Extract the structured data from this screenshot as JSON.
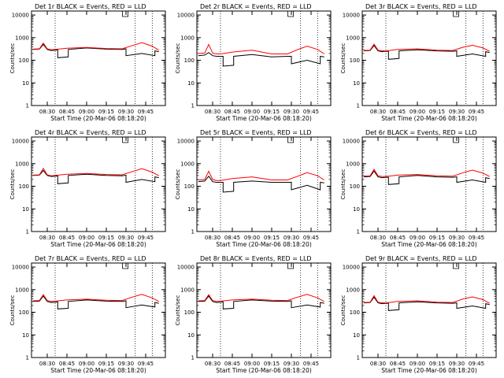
{
  "common": {
    "xlabel": "Start Time (20-Mar-06 08:18:20)",
    "ylabel": "Counts/sec",
    "x_tick_labels": [
      "08:30",
      "08:45",
      "09:00",
      "09:15",
      "09:30",
      "09:45"
    ],
    "y_tick_labels": [
      "1",
      "10",
      "100",
      "1000",
      "10000"
    ]
  },
  "chart_data": [
    {
      "type": "line",
      "title": "Det 1r BLACK = Events, RED = LLD",
      "xlabel": "Start Time (20-Mar-06 08:18:20)",
      "ylabel": "Counts/sec",
      "y_scale": "log",
      "ylim": [
        1,
        15000
      ],
      "x_ticks": [
        "08:30",
        "08:45",
        "09:00",
        "09:15",
        "09:30",
        "09:45"
      ],
      "vlines": [
        "08:36",
        "09:37",
        "09:50"
      ],
      "series": [
        {
          "color": "#000000",
          "x": [
            "08:19",
            "08:24",
            "08:27",
            "08:30",
            "08:33",
            "08:36",
            "08:38",
            "08:38",
            "08:46",
            "08:46",
            "09:00",
            "09:15",
            "09:27",
            "09:30",
            "09:30",
            "09:42",
            "09:52",
            "09:52",
            "09:55"
          ],
          "y": [
            300,
            310,
            500,
            300,
            270,
            280,
            290,
            130,
            140,
            300,
            350,
            310,
            300,
            320,
            160,
            200,
            160,
            260,
            240
          ]
        },
        {
          "color": "#ff0000",
          "x": [
            "08:19",
            "08:24",
            "08:27",
            "08:30",
            "08:33",
            "08:36",
            "08:45",
            "09:00",
            "09:15",
            "09:27",
            "09:35",
            "09:42",
            "09:50",
            "09:55"
          ],
          "y": [
            310,
            320,
            580,
            320,
            290,
            300,
            340,
            370,
            330,
            320,
            450,
            600,
            420,
            280
          ]
        }
      ]
    },
    {
      "type": "line",
      "title": "Det 2r BLACK = Events, RED = LLD",
      "xlabel": "Start Time (20-Mar-06 08:18:20)",
      "ylabel": "Counts/sec",
      "y_scale": "log",
      "ylim": [
        1,
        15000
      ],
      "x_ticks": [
        "08:30",
        "08:45",
        "09:00",
        "09:15",
        "09:30",
        "09:45"
      ],
      "vlines": [
        "08:36",
        "09:37",
        "09:50"
      ],
      "series": [
        {
          "color": "#000000",
          "x": [
            "08:19",
            "08:24",
            "08:27",
            "08:30",
            "08:33",
            "08:36",
            "08:38",
            "08:38",
            "08:46",
            "08:46",
            "09:00",
            "09:15",
            "09:27",
            "09:30",
            "09:30",
            "09:42",
            "09:52",
            "09:52",
            "09:55"
          ],
          "y": [
            160,
            170,
            220,
            160,
            150,
            150,
            150,
            55,
            60,
            150,
            180,
            140,
            150,
            150,
            70,
            100,
            70,
            150,
            140
          ]
        },
        {
          "color": "#ff0000",
          "x": [
            "08:19",
            "08:24",
            "08:27",
            "08:30",
            "08:33",
            "08:36",
            "08:45",
            "09:00",
            "09:15",
            "09:27",
            "09:35",
            "09:42",
            "09:50",
            "09:55"
          ],
          "y": [
            200,
            210,
            500,
            210,
            190,
            190,
            230,
            280,
            190,
            190,
            300,
            420,
            300,
            190
          ]
        }
      ]
    },
    {
      "type": "line",
      "title": "Det 3r BLACK = Events, RED = LLD",
      "xlabel": "Start Time (20-Mar-06 08:18:20)",
      "ylabel": "Counts/sec",
      "y_scale": "log",
      "ylim": [
        1,
        15000
      ],
      "x_ticks": [
        "08:30",
        "08:45",
        "09:00",
        "09:15",
        "09:30",
        "09:45"
      ],
      "vlines": [
        "08:36",
        "09:37",
        "09:50"
      ],
      "series": [
        {
          "color": "#000000",
          "x": [
            "08:19",
            "08:24",
            "08:27",
            "08:30",
            "08:33",
            "08:36",
            "08:38",
            "08:38",
            "08:46",
            "08:46",
            "09:00",
            "09:15",
            "09:27",
            "09:30",
            "09:30",
            "09:42",
            "09:52",
            "09:52",
            "09:55"
          ],
          "y": [
            260,
            270,
            450,
            260,
            240,
            250,
            250,
            110,
            120,
            260,
            290,
            260,
            250,
            260,
            150,
            190,
            150,
            240,
            220
          ]
        },
        {
          "color": "#ff0000",
          "x": [
            "08:19",
            "08:24",
            "08:27",
            "08:30",
            "08:33",
            "08:36",
            "08:45",
            "09:00",
            "09:15",
            "09:27",
            "09:35",
            "09:42",
            "09:50",
            "09:55"
          ],
          "y": [
            270,
            280,
            520,
            280,
            260,
            260,
            300,
            320,
            280,
            270,
            380,
            460,
            350,
            250
          ]
        }
      ]
    },
    {
      "type": "line",
      "title": "Det 4r BLACK = Events, RED = LLD",
      "xlabel": "Start Time (20-Mar-06 08:18:20)",
      "ylabel": "Counts/sec",
      "y_scale": "log",
      "ylim": [
        1,
        15000
      ],
      "x_ticks": [
        "08:30",
        "08:45",
        "09:00",
        "09:15",
        "09:30",
        "09:45"
      ],
      "vlines": [
        "08:36",
        "09:37",
        "09:50"
      ],
      "series": [
        {
          "color": "#000000",
          "x": [
            "08:19",
            "08:24",
            "08:27",
            "08:30",
            "08:33",
            "08:36",
            "08:38",
            "08:38",
            "08:46",
            "08:46",
            "09:00",
            "09:15",
            "09:27",
            "09:30",
            "09:30",
            "09:42",
            "09:52",
            "09:52",
            "09:55"
          ],
          "y": [
            300,
            310,
            500,
            300,
            270,
            280,
            290,
            130,
            140,
            300,
            340,
            300,
            290,
            310,
            150,
            200,
            160,
            260,
            240
          ]
        },
        {
          "color": "#ff0000",
          "x": [
            "08:19",
            "08:24",
            "08:27",
            "08:30",
            "08:33",
            "08:36",
            "08:45",
            "09:00",
            "09:15",
            "09:27",
            "09:35",
            "09:42",
            "09:50",
            "09:55"
          ],
          "y": [
            310,
            320,
            620,
            320,
            290,
            300,
            340,
            370,
            330,
            320,
            450,
            600,
            420,
            290
          ]
        }
      ]
    },
    {
      "type": "line",
      "title": "Det 5r BLACK = Events, RED = LLD",
      "xlabel": "Start Time (20-Mar-06 08:18:20)",
      "ylabel": "Counts/sec",
      "y_scale": "log",
      "ylim": [
        1,
        15000
      ],
      "x_ticks": [
        "08:30",
        "08:45",
        "09:00",
        "09:15",
        "09:30",
        "09:45"
      ],
      "vlines": [
        "08:36",
        "09:37",
        "09:50"
      ],
      "series": [
        {
          "color": "#000000",
          "x": [
            "08:19",
            "08:24",
            "08:27",
            "08:30",
            "08:33",
            "08:36",
            "08:38",
            "08:38",
            "08:46",
            "08:46",
            "09:00",
            "09:15",
            "09:27",
            "09:30",
            "09:30",
            "09:42",
            "09:52",
            "09:52",
            "09:55"
          ],
          "y": [
            160,
            170,
            280,
            160,
            150,
            150,
            150,
            55,
            60,
            150,
            170,
            150,
            150,
            150,
            70,
            110,
            70,
            150,
            140
          ]
        },
        {
          "color": "#ff0000",
          "x": [
            "08:19",
            "08:24",
            "08:27",
            "08:30",
            "08:33",
            "08:36",
            "08:45",
            "09:00",
            "09:15",
            "09:27",
            "09:35",
            "09:42",
            "09:50",
            "09:55"
          ],
          "y": [
            190,
            200,
            460,
            200,
            180,
            180,
            220,
            260,
            190,
            190,
            280,
            400,
            290,
            190
          ]
        }
      ]
    },
    {
      "type": "line",
      "title": "Det 6r BLACK = Events, RED = LLD",
      "xlabel": "Start Time (20-Mar-06 08:18:20)",
      "ylabel": "Counts/sec",
      "y_scale": "log",
      "ylim": [
        1,
        15000
      ],
      "x_ticks": [
        "08:30",
        "08:45",
        "09:00",
        "09:15",
        "09:30",
        "09:45"
      ],
      "vlines": [
        "08:36",
        "09:37",
        "09:50"
      ],
      "series": [
        {
          "color": "#000000",
          "x": [
            "08:19",
            "08:24",
            "08:27",
            "08:30",
            "08:33",
            "08:36",
            "08:38",
            "08:38",
            "08:46",
            "08:46",
            "09:00",
            "09:15",
            "09:27",
            "09:30",
            "09:30",
            "09:42",
            "09:52",
            "09:52",
            "09:55"
          ],
          "y": [
            260,
            270,
            470,
            260,
            240,
            250,
            250,
            120,
            130,
            260,
            300,
            260,
            250,
            260,
            150,
            190,
            150,
            240,
            220
          ]
        },
        {
          "color": "#ff0000",
          "x": [
            "08:19",
            "08:24",
            "08:27",
            "08:30",
            "08:33",
            "08:36",
            "08:45",
            "09:00",
            "09:15",
            "09:27",
            "09:35",
            "09:42",
            "09:50",
            "09:55"
          ],
          "y": [
            280,
            290,
            560,
            290,
            270,
            270,
            310,
            330,
            290,
            280,
            400,
            520,
            380,
            270
          ]
        }
      ]
    },
    {
      "type": "line",
      "title": "Det 7r BLACK = Events, RED = LLD",
      "xlabel": "Start Time (20-Mar-06 08:18:20)",
      "ylabel": "Counts/sec",
      "y_scale": "log",
      "ylim": [
        1,
        15000
      ],
      "x_ticks": [
        "08:30",
        "08:45",
        "09:00",
        "09:15",
        "09:30",
        "09:45"
      ],
      "vlines": [
        "08:36",
        "09:37",
        "09:50"
      ],
      "series": [
        {
          "color": "#000000",
          "x": [
            "08:19",
            "08:24",
            "08:27",
            "08:30",
            "08:33",
            "08:36",
            "08:38",
            "08:38",
            "08:46",
            "08:46",
            "09:00",
            "09:15",
            "09:27",
            "09:30",
            "09:30",
            "09:42",
            "09:52",
            "09:52",
            "09:55"
          ],
          "y": [
            300,
            310,
            520,
            300,
            270,
            280,
            290,
            140,
            150,
            300,
            350,
            310,
            300,
            320,
            160,
            210,
            170,
            270,
            250
          ]
        },
        {
          "color": "#ff0000",
          "x": [
            "08:19",
            "08:24",
            "08:27",
            "08:30",
            "08:33",
            "08:36",
            "08:45",
            "09:00",
            "09:15",
            "09:27",
            "09:35",
            "09:42",
            "09:50",
            "09:55"
          ],
          "y": [
            320,
            330,
            600,
            330,
            300,
            310,
            350,
            380,
            340,
            330,
            470,
            620,
            430,
            300
          ]
        }
      ]
    },
    {
      "type": "line",
      "title": "Det 8r BLACK = Events, RED = LLD",
      "xlabel": "Start Time (20-Mar-06 08:18:20)",
      "ylabel": "Counts/sec",
      "y_scale": "log",
      "ylim": [
        1,
        15000
      ],
      "x_ticks": [
        "08:30",
        "08:45",
        "09:00",
        "09:15",
        "09:30",
        "09:45"
      ],
      "vlines": [
        "08:36",
        "09:37",
        "09:50"
      ],
      "series": [
        {
          "color": "#000000",
          "x": [
            "08:19",
            "08:24",
            "08:27",
            "08:30",
            "08:33",
            "08:36",
            "08:38",
            "08:38",
            "08:46",
            "08:46",
            "09:00",
            "09:15",
            "09:27",
            "09:30",
            "09:30",
            "09:42",
            "09:52",
            "09:52",
            "09:55"
          ],
          "y": [
            300,
            310,
            520,
            300,
            270,
            280,
            290,
            140,
            150,
            300,
            350,
            310,
            300,
            320,
            160,
            210,
            170,
            270,
            250
          ]
        },
        {
          "color": "#ff0000",
          "x": [
            "08:19",
            "08:24",
            "08:27",
            "08:30",
            "08:33",
            "08:36",
            "08:45",
            "09:00",
            "09:15",
            "09:27",
            "09:35",
            "09:42",
            "09:50",
            "09:55"
          ],
          "y": [
            320,
            330,
            600,
            330,
            300,
            310,
            350,
            380,
            340,
            330,
            470,
            620,
            430,
            300
          ]
        }
      ]
    },
    {
      "type": "line",
      "title": "Det 9r BLACK = Events, RED = LLD",
      "xlabel": "Start Time (20-Mar-06 08:18:20)",
      "ylabel": "Counts/sec",
      "y_scale": "log",
      "ylim": [
        1,
        15000
      ],
      "x_ticks": [
        "08:30",
        "08:45",
        "09:00",
        "09:15",
        "09:30",
        "09:45"
      ],
      "vlines": [
        "08:36",
        "09:37",
        "09:50"
      ],
      "series": [
        {
          "color": "#000000",
          "x": [
            "08:19",
            "08:24",
            "08:27",
            "08:30",
            "08:33",
            "08:36",
            "08:38",
            "08:38",
            "08:46",
            "08:46",
            "09:00",
            "09:15",
            "09:27",
            "09:30",
            "09:30",
            "09:42",
            "09:52",
            "09:52",
            "09:55"
          ],
          "y": [
            260,
            270,
            460,
            260,
            240,
            250,
            250,
            120,
            130,
            260,
            290,
            260,
            250,
            260,
            150,
            190,
            150,
            240,
            220
          ]
        },
        {
          "color": "#ff0000",
          "x": [
            "08:19",
            "08:24",
            "08:27",
            "08:30",
            "08:33",
            "08:36",
            "08:45",
            "09:00",
            "09:15",
            "09:27",
            "09:35",
            "09:42",
            "09:50",
            "09:55"
          ],
          "y": [
            270,
            280,
            540,
            280,
            260,
            260,
            300,
            320,
            280,
            270,
            390,
            480,
            360,
            250
          ]
        }
      ]
    }
  ]
}
